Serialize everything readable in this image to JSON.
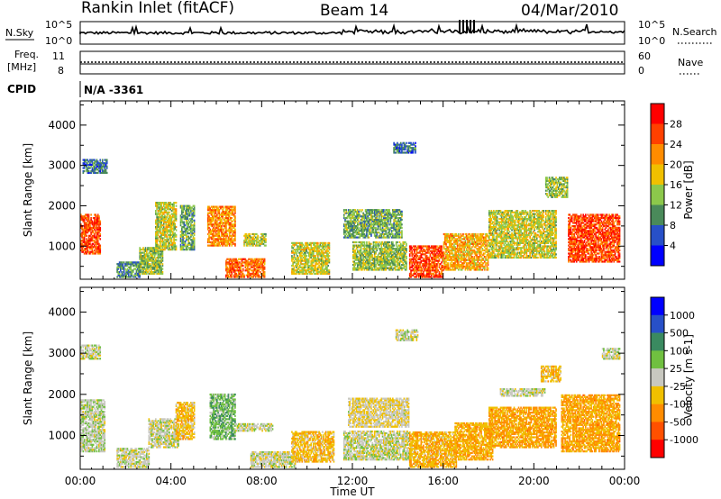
{
  "header": {
    "station": "Rankin Inlet (fitACF)",
    "beam": "Beam 14",
    "date": "04/Mar/2010"
  },
  "top_panels": {
    "nsky_label": "N.Sky",
    "nsky_ticks": [
      "10^5",
      "10^0"
    ],
    "nsky_right_ticks": [
      "10^5",
      "10^0"
    ],
    "nsearch_label": "N.Search",
    "freq_label_1": "Freq.",
    "freq_label_2": "[MHz]",
    "freq_ticks": [
      "11",
      "8"
    ],
    "nave_ticks": [
      "60",
      "0"
    ],
    "nave_label": "Nave",
    "cpid_label": "CPID",
    "cpid_value": "N/A -3361"
  },
  "chart_data": [
    {
      "type": "heatmap",
      "name": "power",
      "ylabel": "Slant Range [km]",
      "xlabel": "Time UT",
      "xlim": [
        "00:00",
        "24:00"
      ],
      "ylim": [
        180,
        4600
      ],
      "x_ticks": [
        "00:00",
        "04:00",
        "08:00",
        "12:00",
        "16:00",
        "20:00",
        "00:00"
      ],
      "y_ticks": [
        1000,
        2000,
        3000,
        4000
      ],
      "colorbar": {
        "label": "Power [dB]",
        "ticks": [
          "28",
          "24",
          "20",
          "16",
          "12",
          "8",
          "4"
        ],
        "range": [
          0,
          32
        ],
        "colors": [
          "#0000ff",
          "#2850c8",
          "#4a8a5a",
          "#8cc84b",
          "#f0c000",
          "#ff8c00",
          "#ff4000",
          "#ff0000"
        ]
      },
      "regions": [
        {
          "t0": 0.0,
          "t1": 0.9,
          "r0": 800,
          "r1": 1800,
          "v": 26
        },
        {
          "t0": 0.1,
          "t1": 1.2,
          "r0": 2800,
          "r1": 3150,
          "v": 8
        },
        {
          "t0": 1.6,
          "t1": 2.6,
          "r0": 220,
          "r1": 600,
          "v": 10
        },
        {
          "t0": 2.6,
          "t1": 3.6,
          "r0": 300,
          "r1": 950,
          "v": 14
        },
        {
          "t0": 3.3,
          "t1": 4.2,
          "r0": 900,
          "r1": 2100,
          "v": 16
        },
        {
          "t0": 4.4,
          "t1": 5.0,
          "r0": 900,
          "r1": 2000,
          "v": 12
        },
        {
          "t0": 5.6,
          "t1": 6.8,
          "r0": 1000,
          "r1": 2000,
          "v": 22
        },
        {
          "t0": 6.4,
          "t1": 8.1,
          "r0": 220,
          "r1": 700,
          "v": 24
        },
        {
          "t0": 7.2,
          "t1": 8.2,
          "r0": 1000,
          "r1": 1300,
          "v": 16
        },
        {
          "t0": 9.3,
          "t1": 11.0,
          "r0": 300,
          "r1": 1100,
          "v": 16
        },
        {
          "t0": 11.6,
          "t1": 14.2,
          "r0": 1200,
          "r1": 1900,
          "v": 12
        },
        {
          "t0": 12.0,
          "t1": 14.4,
          "r0": 400,
          "r1": 1100,
          "v": 14
        },
        {
          "t0": 13.8,
          "t1": 14.8,
          "r0": 3300,
          "r1": 3550,
          "v": 8
        },
        {
          "t0": 14.5,
          "t1": 16.0,
          "r0": 220,
          "r1": 1000,
          "v": 26
        },
        {
          "t0": 16.0,
          "t1": 18.0,
          "r0": 400,
          "r1": 1300,
          "v": 20
        },
        {
          "t0": 18.0,
          "t1": 21.0,
          "r0": 700,
          "r1": 1900,
          "v": 16
        },
        {
          "t0": 20.5,
          "t1": 21.5,
          "r0": 2200,
          "r1": 2700,
          "v": 14
        },
        {
          "t0": 21.5,
          "t1": 23.8,
          "r0": 600,
          "r1": 1800,
          "v": 26
        }
      ]
    },
    {
      "type": "heatmap",
      "name": "velocity",
      "ylabel": "Slant Range [km]",
      "xlabel": "Time UT",
      "xlim": [
        "00:00",
        "24:00"
      ],
      "ylim": [
        180,
        4600
      ],
      "x_ticks": [
        "00:00",
        "04:00",
        "08:00",
        "12:00",
        "16:00",
        "20:00",
        "00:00"
      ],
      "y_ticks": [
        1000,
        2000,
        3000,
        4000
      ],
      "colorbar": {
        "label": "Velocity [m s-1]",
        "ticks": [
          "1000",
          "500",
          "100",
          "25",
          "-25",
          "-100",
          "-500",
          "-1000"
        ],
        "range": [
          -1250,
          1250
        ],
        "colors": [
          "#ff0000",
          "#ff5000",
          "#ff8c00",
          "#f0c000",
          "#c8c8c0",
          "#70c040",
          "#3a8a60",
          "#2850c8",
          "#0000ff"
        ]
      },
      "regions": [
        {
          "t0": 0.0,
          "t1": 1.1,
          "r0": 600,
          "r1": 1850,
          "v": 60
        },
        {
          "t0": 0.0,
          "t1": 0.9,
          "r0": 2850,
          "r1": 3200,
          "v": 0
        },
        {
          "t0": 1.6,
          "t1": 3.0,
          "r0": 220,
          "r1": 700,
          "v": 0
        },
        {
          "t0": 3.0,
          "t1": 4.3,
          "r0": 700,
          "r1": 1400,
          "v": 0
        },
        {
          "t0": 4.2,
          "t1": 5.0,
          "r0": 900,
          "r1": 1800,
          "v": -300
        },
        {
          "t0": 5.7,
          "t1": 6.8,
          "r0": 900,
          "r1": 2000,
          "v": 300
        },
        {
          "t0": 6.8,
          "t1": 8.5,
          "r0": 1100,
          "r1": 1300,
          "v": 0
        },
        {
          "t0": 7.5,
          "t1": 9.5,
          "r0": 220,
          "r1": 600,
          "v": 0
        },
        {
          "t0": 9.3,
          "t1": 11.2,
          "r0": 350,
          "r1": 1100,
          "v": -300
        },
        {
          "t0": 11.8,
          "t1": 14.5,
          "r0": 1200,
          "r1": 1900,
          "v": -100
        },
        {
          "t0": 11.6,
          "t1": 14.5,
          "r0": 400,
          "r1": 1100,
          "v": 0
        },
        {
          "t0": 13.9,
          "t1": 14.9,
          "r0": 3300,
          "r1": 3550,
          "v": 0
        },
        {
          "t0": 14.5,
          "t1": 16.6,
          "r0": 220,
          "r1": 1100,
          "v": -350
        },
        {
          "t0": 16.5,
          "t1": 18.2,
          "r0": 400,
          "r1": 1300,
          "v": -400
        },
        {
          "t0": 18.0,
          "t1": 21.0,
          "r0": 700,
          "r1": 1700,
          "v": -450
        },
        {
          "t0": 18.5,
          "t1": 20.5,
          "r0": 1950,
          "r1": 2150,
          "v": 0
        },
        {
          "t0": 20.3,
          "t1": 21.2,
          "r0": 2300,
          "r1": 2700,
          "v": -300
        },
        {
          "t0": 21.2,
          "t1": 23.8,
          "r0": 600,
          "r1": 2000,
          "v": -450
        },
        {
          "t0": 23.0,
          "t1": 23.8,
          "r0": 2850,
          "r1": 3100,
          "v": 0
        }
      ]
    }
  ]
}
